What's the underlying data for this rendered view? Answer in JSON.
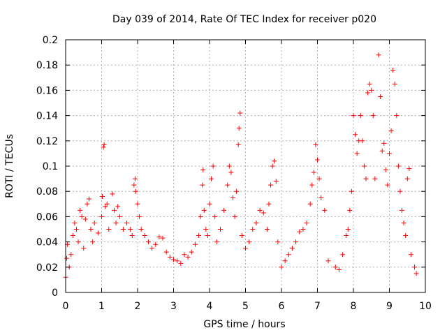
{
  "chart_data": {
    "type": "scatter",
    "title": "Day 039 of 2014, Rate Of TEC Index for receiver p020",
    "xlabel": "GPS time / hours",
    "ylabel": "ROTI / TECUs",
    "xlim": [
      0,
      10
    ],
    "ylim": [
      0,
      0.2
    ],
    "grid": true,
    "marker": "plus",
    "color": "#ff0000",
    "x_ticks": [
      0,
      1,
      2,
      3,
      4,
      5,
      6,
      7,
      8,
      9,
      10
    ],
    "x_tick_labels": [
      "0",
      "1",
      "2",
      "3",
      "4",
      "5",
      "6",
      "7",
      "8",
      "9",
      "10"
    ],
    "y_ticks": [
      0,
      0.02,
      0.04,
      0.06,
      0.08,
      0.1,
      0.12,
      0.14,
      0.16,
      0.18,
      0.2
    ],
    "y_tick_labels": [
      "0",
      "0.02",
      "0.04",
      "0.06",
      "0.08",
      "0.1",
      "0.12",
      "0.14",
      "0.16",
      "0.18",
      "0.2"
    ],
    "series": [
      {
        "name": "ROTI",
        "points": [
          [
            0.0,
            0.012
          ],
          [
            0.03,
            0.027
          ],
          [
            0.05,
            0.038
          ],
          [
            0.1,
            0.02
          ],
          [
            0.15,
            0.03
          ],
          [
            0.2,
            0.045
          ],
          [
            0.25,
            0.055
          ],
          [
            0.3,
            0.05
          ],
          [
            0.35,
            0.04
          ],
          [
            0.4,
            0.065
          ],
          [
            0.45,
            0.06
          ],
          [
            0.5,
            0.035
          ],
          [
            0.55,
            0.058
          ],
          [
            0.6,
            0.07
          ],
          [
            0.65,
            0.074
          ],
          [
            0.7,
            0.05
          ],
          [
            0.75,
            0.04
          ],
          [
            0.8,
            0.055
          ],
          [
            0.9,
            0.047
          ],
          [
            1.0,
            0.06
          ],
          [
            1.02,
            0.076
          ],
          [
            1.05,
            0.115
          ],
          [
            1.07,
            0.117
          ],
          [
            1.1,
            0.068
          ],
          [
            1.15,
            0.07
          ],
          [
            1.2,
            0.05
          ],
          [
            1.3,
            0.078
          ],
          [
            1.35,
            0.065
          ],
          [
            1.4,
            0.055
          ],
          [
            1.45,
            0.068
          ],
          [
            1.5,
            0.06
          ],
          [
            1.6,
            0.05
          ],
          [
            1.7,
            0.055
          ],
          [
            1.8,
            0.05
          ],
          [
            1.85,
            0.045
          ],
          [
            1.9,
            0.085
          ],
          [
            1.93,
            0.09
          ],
          [
            1.95,
            0.08
          ],
          [
            2.0,
            0.07
          ],
          [
            2.05,
            0.06
          ],
          [
            2.1,
            0.05
          ],
          [
            2.2,
            0.045
          ],
          [
            2.3,
            0.04
          ],
          [
            2.4,
            0.035
          ],
          [
            2.5,
            0.038
          ],
          [
            2.6,
            0.044
          ],
          [
            2.7,
            0.043
          ],
          [
            2.8,
            0.032
          ],
          [
            2.9,
            0.028
          ],
          [
            3.0,
            0.026
          ],
          [
            3.1,
            0.025
          ],
          [
            3.2,
            0.023
          ],
          [
            3.3,
            0.03
          ],
          [
            3.4,
            0.028
          ],
          [
            3.5,
            0.032
          ],
          [
            3.6,
            0.038
          ],
          [
            3.7,
            0.045
          ],
          [
            3.75,
            0.06
          ],
          [
            3.8,
            0.085
          ],
          [
            3.82,
            0.097
          ],
          [
            3.85,
            0.065
          ],
          [
            3.9,
            0.05
          ],
          [
            3.95,
            0.045
          ],
          [
            4.0,
            0.07
          ],
          [
            4.05,
            0.09
          ],
          [
            4.1,
            0.1
          ],
          [
            4.15,
            0.06
          ],
          [
            4.2,
            0.04
          ],
          [
            4.3,
            0.05
          ],
          [
            4.4,
            0.065
          ],
          [
            4.5,
            0.085
          ],
          [
            4.55,
            0.1
          ],
          [
            4.6,
            0.095
          ],
          [
            4.65,
            0.075
          ],
          [
            4.7,
            0.06
          ],
          [
            4.75,
            0.08
          ],
          [
            4.8,
            0.117
          ],
          [
            4.82,
            0.13
          ],
          [
            4.85,
            0.142
          ],
          [
            4.9,
            0.045
          ],
          [
            5.0,
            0.035
          ],
          [
            5.1,
            0.04
          ],
          [
            5.2,
            0.05
          ],
          [
            5.3,
            0.055
          ],
          [
            5.4,
            0.065
          ],
          [
            5.5,
            0.063
          ],
          [
            5.6,
            0.05
          ],
          [
            5.65,
            0.07
          ],
          [
            5.7,
            0.085
          ],
          [
            5.75,
            0.1
          ],
          [
            5.8,
            0.104
          ],
          [
            5.85,
            0.088
          ],
          [
            5.9,
            0.04
          ],
          [
            6.0,
            0.02
          ],
          [
            6.1,
            0.025
          ],
          [
            6.2,
            0.03
          ],
          [
            6.3,
            0.035
          ],
          [
            6.4,
            0.04
          ],
          [
            6.5,
            0.048
          ],
          [
            6.6,
            0.05
          ],
          [
            6.7,
            0.055
          ],
          [
            6.8,
            0.07
          ],
          [
            6.85,
            0.085
          ],
          [
            6.9,
            0.095
          ],
          [
            6.95,
            0.117
          ],
          [
            7.0,
            0.105
          ],
          [
            7.05,
            0.09
          ],
          [
            7.1,
            0.075
          ],
          [
            7.2,
            0.065
          ],
          [
            7.3,
            0.025
          ],
          [
            7.5,
            0.02
          ],
          [
            7.6,
            0.018
          ],
          [
            7.7,
            0.03
          ],
          [
            7.8,
            0.045
          ],
          [
            7.85,
            0.05
          ],
          [
            7.9,
            0.065
          ],
          [
            7.95,
            0.08
          ],
          [
            8.0,
            0.14
          ],
          [
            8.05,
            0.125
          ],
          [
            8.1,
            0.11
          ],
          [
            8.15,
            0.12
          ],
          [
            8.2,
            0.14
          ],
          [
            8.25,
            0.12
          ],
          [
            8.3,
            0.1
          ],
          [
            8.35,
            0.09
          ],
          [
            8.4,
            0.158
          ],
          [
            8.45,
            0.165
          ],
          [
            8.5,
            0.16
          ],
          [
            8.55,
            0.14
          ],
          [
            8.6,
            0.09
          ],
          [
            8.7,
            0.188
          ],
          [
            8.75,
            0.155
          ],
          [
            8.8,
            0.112
          ],
          [
            8.85,
            0.118
          ],
          [
            8.9,
            0.097
          ],
          [
            8.95,
            0.085
          ],
          [
            9.0,
            0.11
          ],
          [
            9.05,
            0.128
          ],
          [
            9.1,
            0.176
          ],
          [
            9.15,
            0.165
          ],
          [
            9.2,
            0.14
          ],
          [
            9.25,
            0.1
          ],
          [
            9.3,
            0.08
          ],
          [
            9.35,
            0.065
          ],
          [
            9.4,
            0.055
          ],
          [
            9.45,
            0.045
          ],
          [
            9.5,
            0.09
          ],
          [
            9.55,
            0.098
          ],
          [
            9.6,
            0.03
          ],
          [
            9.7,
            0.02
          ],
          [
            9.75,
            0.015
          ]
        ]
      }
    ]
  }
}
